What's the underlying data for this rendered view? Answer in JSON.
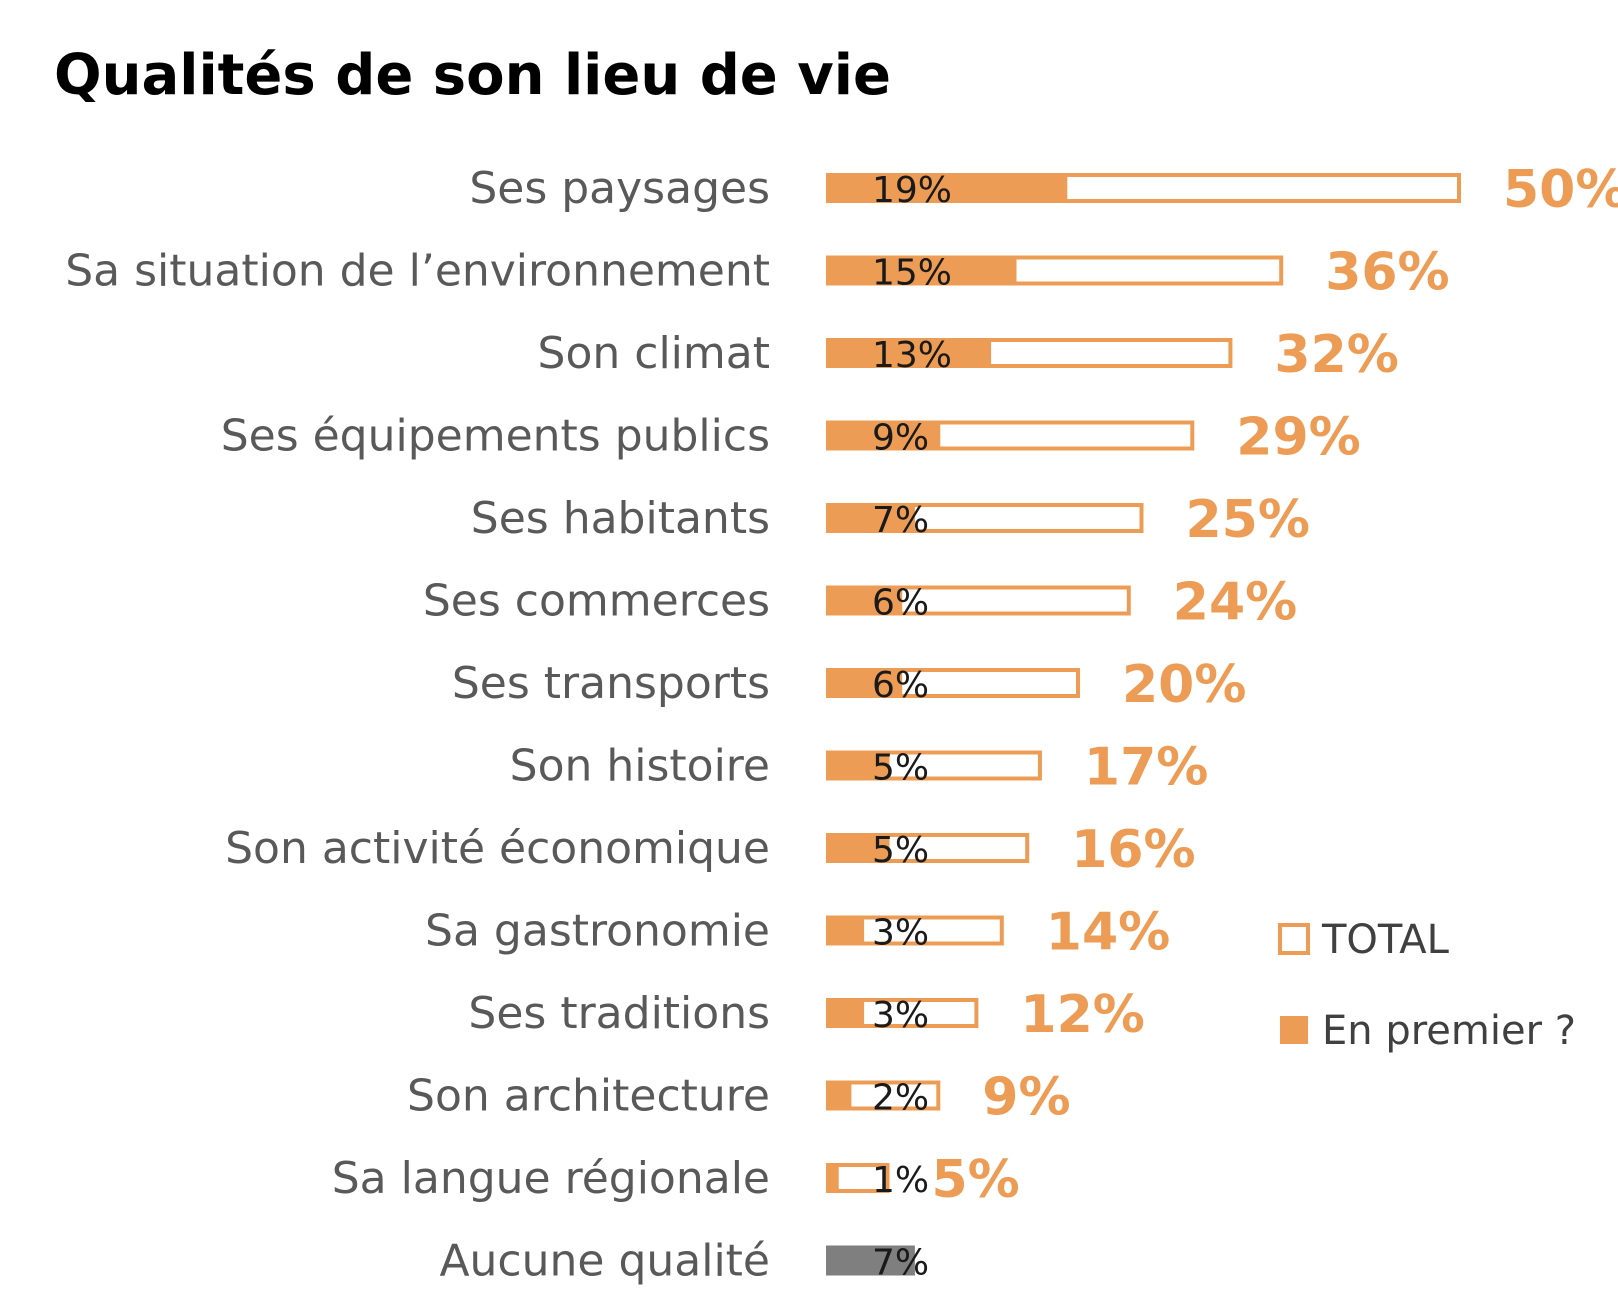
{
  "chart_data": {
    "type": "bar",
    "orientation": "horizontal",
    "title": "Qualités de son lieu de vie",
    "categories": [
      "Ses paysages",
      "Sa situation de l’environnement",
      "Son climat",
      "Ses équipements publics",
      "Ses habitants",
      "Ses commerces",
      "Ses transports",
      "Son histoire",
      "Son activité économique",
      "Sa gastronomie",
      "Ses traditions",
      "Son architecture",
      "Sa langue régionale",
      "Aucune qualité"
    ],
    "series": [
      {
        "name": "TOTAL",
        "style": "outline",
        "values": [
          50,
          36,
          32,
          29,
          25,
          24,
          20,
          17,
          16,
          14,
          12,
          9,
          5,
          null
        ],
        "labels": [
          "50%",
          "36%",
          "32%",
          "29%",
          "25%",
          "24%",
          "20%",
          "17%",
          "16%",
          "14%",
          "12%",
          "9%",
          "5%",
          ""
        ]
      },
      {
        "name": "En premier ?",
        "style": "filled",
        "values": [
          19,
          15,
          13,
          9,
          7,
          6,
          6,
          5,
          5,
          3,
          3,
          2,
          1,
          7
        ],
        "labels": [
          "19%",
          "15%",
          "13%",
          "9%",
          "7%",
          "6%",
          "6%",
          "5%",
          "5%",
          "3%",
          "3%",
          "2%",
          "1%",
          "7%"
        ]
      }
    ],
    "legend": {
      "position": "bottom-right",
      "entries": [
        "TOTAL",
        "En premier ?"
      ]
    },
    "grid": false,
    "xlim": [
      0,
      50
    ],
    "colors": {
      "accent": "#ED9C55",
      "none_bar": "#7F7F7F",
      "category_text": "#595959",
      "inner_label": "#1a1a1a"
    }
  }
}
